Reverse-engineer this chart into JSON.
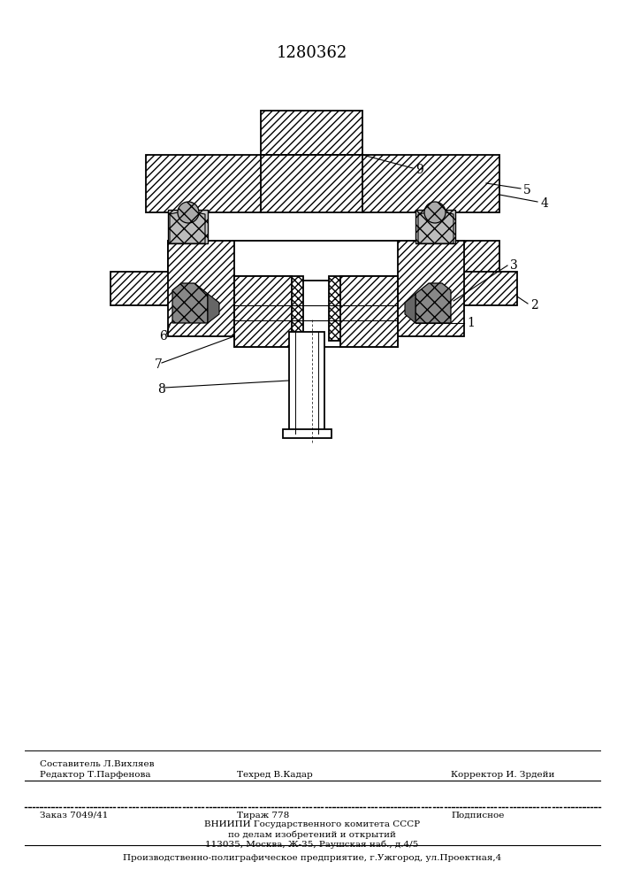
{
  "patent_number": "1280362",
  "bg_color": "#ffffff",
  "line_color": "#000000",
  "footer": {
    "editor": "Редактор Т.Парфенова",
    "composer": "Составитель Л.Вихляев",
    "techred": "Техред В.Кадар",
    "corrector": "Корректор И. Зрдейи",
    "order": "Заказ 7049/41",
    "circulation": "Тираж 778",
    "subscription": "Подписное",
    "vniipи_line1": "ВНИИПИ Государственного комитета СССР",
    "vniipи_line2": "по делам изобретений и открытий",
    "vniipи_line3": "113035, Москва, Ж-35, Раушская наб., д.4/5",
    "production": "Производственно-полиграфическое предприятие, г.Ужгород, ул.Проектная,4"
  }
}
